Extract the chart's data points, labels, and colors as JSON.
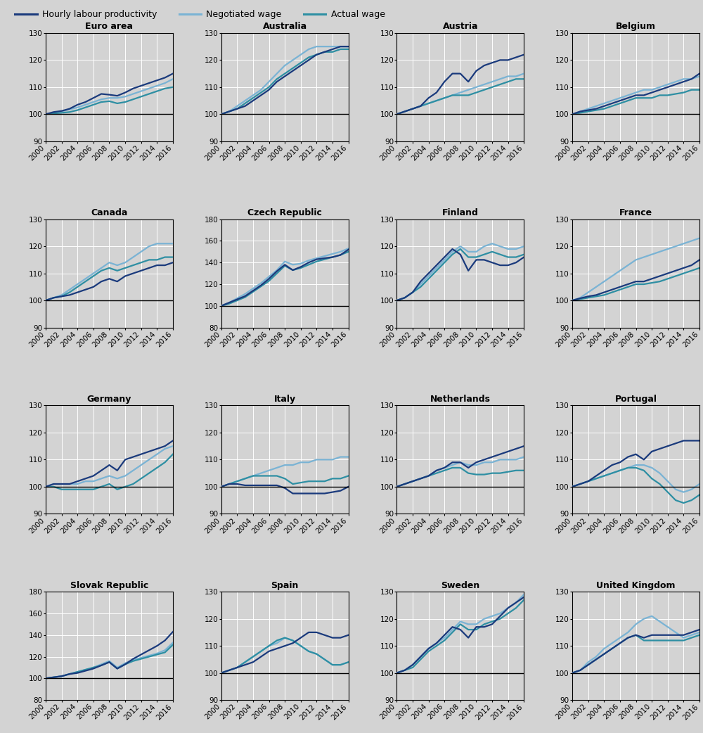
{
  "years": [
    2000,
    2001,
    2002,
    2003,
    2004,
    2005,
    2006,
    2007,
    2008,
    2009,
    2010,
    2011,
    2012,
    2013,
    2014,
    2015,
    2016
  ],
  "panels": [
    {
      "title": "Euro area",
      "ylim": [
        90,
        130
      ],
      "yticks": [
        90,
        100,
        110,
        120,
        130
      ],
      "hourly": [
        100,
        100.8,
        101.2,
        102.0,
        103.5,
        104.5,
        106.0,
        107.5,
        107.2,
        106.8,
        108.0,
        109.5,
        110.5,
        111.5,
        112.5,
        113.5,
        115.0
      ],
      "negotiated": [
        100,
        100.5,
        101.0,
        101.8,
        102.5,
        103.5,
        104.5,
        105.5,
        106.0,
        106.0,
        106.5,
        107.5,
        108.5,
        109.5,
        110.5,
        111.5,
        113.0
      ],
      "actual": [
        100,
        100.3,
        100.5,
        100.8,
        101.5,
        102.5,
        103.5,
        104.5,
        104.8,
        104.0,
        104.5,
        105.5,
        106.5,
        107.5,
        108.5,
        109.5,
        110.0
      ]
    },
    {
      "title": "Australia",
      "ylim": [
        90,
        130
      ],
      "yticks": [
        90,
        100,
        110,
        120,
        130
      ],
      "hourly": [
        100,
        101,
        102,
        103,
        105,
        107,
        109,
        112,
        114,
        116,
        118,
        120,
        122,
        123,
        124,
        125,
        125
      ],
      "negotiated": [
        100,
        101,
        103,
        105,
        107,
        109,
        112,
        115,
        118,
        120,
        122,
        124,
        125,
        125,
        125,
        125,
        125
      ],
      "actual": [
        100,
        101,
        102,
        104,
        106,
        108,
        110,
        113,
        115,
        117,
        119,
        121,
        122,
        123,
        123,
        124,
        124
      ]
    },
    {
      "title": "Austria",
      "ylim": [
        90,
        130
      ],
      "yticks": [
        90,
        100,
        110,
        120,
        130
      ],
      "hourly": [
        100,
        101,
        102,
        103,
        106,
        108,
        112,
        115,
        115,
        112,
        116,
        118,
        119,
        120,
        120,
        121,
        122
      ],
      "negotiated": [
        100,
        101,
        102,
        103,
        104,
        105,
        106,
        107,
        108,
        109,
        110,
        111,
        112,
        113,
        114,
        114,
        115
      ],
      "actual": [
        100,
        101,
        102,
        103,
        104,
        105,
        106,
        107,
        107,
        107,
        108,
        109,
        110,
        111,
        112,
        113,
        113
      ]
    },
    {
      "title": "Belgium",
      "ylim": [
        90,
        130
      ],
      "yticks": [
        90,
        100,
        110,
        120,
        130
      ],
      "hourly": [
        100,
        101,
        101.5,
        102,
        103,
        104,
        105,
        106,
        107,
        107,
        108,
        109,
        110,
        111,
        112,
        113,
        115
      ],
      "negotiated": [
        100,
        101,
        102,
        103,
        104,
        105,
        106,
        107,
        108,
        109,
        109,
        110,
        111,
        112,
        113,
        113,
        114
      ],
      "actual": [
        100,
        100.5,
        101,
        101.5,
        102,
        103,
        104,
        105,
        106,
        106,
        106,
        107,
        107,
        107.5,
        108,
        109,
        109
      ]
    },
    {
      "title": "Canada",
      "ylim": [
        90,
        130
      ],
      "yticks": [
        90,
        100,
        110,
        120,
        130
      ],
      "hourly": [
        100,
        101,
        101.5,
        102,
        103,
        104,
        105,
        107,
        108,
        107,
        109,
        110,
        111,
        112,
        113,
        113,
        114
      ],
      "negotiated": [
        100,
        101,
        102,
        104,
        106,
        108,
        110,
        112,
        114,
        113,
        114,
        116,
        118,
        120,
        121,
        121,
        121
      ],
      "actual": [
        100,
        101,
        101.5,
        103,
        105,
        107,
        109,
        111,
        112,
        111,
        112,
        113,
        114,
        115,
        115,
        116,
        116
      ]
    },
    {
      "title": "Czech Republic",
      "ylim": [
        80,
        180
      ],
      "yticks": [
        80,
        100,
        120,
        140,
        160,
        180
      ],
      "hourly": [
        100,
        103,
        106,
        109,
        114,
        119,
        125,
        132,
        138,
        133,
        136,
        140,
        143,
        144,
        145,
        147,
        152
      ],
      "negotiated": [
        100,
        103,
        107,
        111,
        116,
        121,
        127,
        133,
        141,
        138,
        139,
        142,
        144,
        146,
        148,
        150,
        153
      ],
      "actual": [
        100,
        102,
        105,
        108,
        113,
        118,
        123,
        130,
        137,
        133,
        135,
        138,
        141,
        143,
        145,
        147,
        150
      ]
    },
    {
      "title": "Finland",
      "ylim": [
        90,
        130
      ],
      "yticks": [
        90,
        100,
        110,
        120,
        130
      ],
      "hourly": [
        100,
        101,
        103,
        107,
        110,
        113,
        116,
        119,
        117,
        111,
        115,
        115,
        114,
        113,
        113,
        114,
        116
      ],
      "negotiated": [
        100,
        101,
        103,
        106,
        109,
        112,
        115,
        118,
        120,
        118,
        118,
        120,
        121,
        120,
        119,
        119,
        120
      ],
      "actual": [
        100,
        101,
        103,
        105,
        108,
        111,
        114,
        117,
        119,
        116,
        116,
        117,
        118,
        117,
        116,
        116,
        117
      ]
    },
    {
      "title": "France",
      "ylim": [
        90,
        130
      ],
      "yticks": [
        90,
        100,
        110,
        120,
        130
      ],
      "hourly": [
        100,
        100.8,
        101.5,
        102,
        103,
        104,
        105,
        106,
        107,
        107,
        108,
        109,
        110,
        111,
        112,
        113,
        115
      ],
      "negotiated": [
        100,
        101,
        103,
        105,
        107,
        109,
        111,
        113,
        115,
        116,
        117,
        118,
        119,
        120,
        121,
        122,
        123
      ],
      "actual": [
        100,
        100.5,
        101,
        101.5,
        102,
        103,
        104,
        105,
        106,
        106,
        106.5,
        107,
        108,
        109,
        110,
        111,
        112
      ]
    },
    {
      "title": "Germany",
      "ylim": [
        90,
        130
      ],
      "yticks": [
        90,
        100,
        110,
        120,
        130
      ],
      "hourly": [
        100,
        101,
        101,
        101,
        102,
        103,
        104,
        106,
        108,
        106,
        110,
        111,
        112,
        113,
        114,
        115,
        117
      ],
      "negotiated": [
        100,
        101,
        101,
        101,
        101,
        102,
        102,
        103,
        104,
        103,
        104,
        106,
        108,
        110,
        112,
        114,
        115
      ],
      "actual": [
        100,
        100,
        99,
        99,
        99,
        99,
        99,
        100,
        101,
        99,
        100,
        101,
        103,
        105,
        107,
        109,
        112
      ]
    },
    {
      "title": "Italy",
      "ylim": [
        90,
        130
      ],
      "yticks": [
        90,
        100,
        110,
        120,
        130
      ],
      "hourly": [
        100,
        101,
        101,
        100.5,
        100.5,
        100.5,
        100.5,
        100.5,
        99.5,
        97.5,
        97.5,
        97.5,
        97.5,
        97.5,
        98,
        98.5,
        100
      ],
      "negotiated": [
        100,
        101,
        102,
        103,
        104,
        105,
        106,
        107,
        108,
        108,
        109,
        109,
        110,
        110,
        110,
        111,
        111
      ],
      "actual": [
        100,
        101,
        102,
        103,
        104,
        104,
        104,
        104,
        103,
        101,
        101.5,
        102,
        102,
        102,
        103,
        103,
        104
      ]
    },
    {
      "title": "Netherlands",
      "ylim": [
        90,
        130
      ],
      "yticks": [
        90,
        100,
        110,
        120,
        130
      ],
      "hourly": [
        100,
        101,
        102,
        103,
        104,
        106,
        107,
        109,
        109,
        107,
        109,
        110,
        111,
        112,
        113,
        114,
        115
      ],
      "negotiated": [
        100,
        101,
        102,
        103,
        104,
        106,
        107,
        108,
        109,
        108,
        108,
        109,
        109,
        110,
        110,
        110,
        111
      ],
      "actual": [
        100,
        101,
        102,
        103,
        104,
        105,
        106,
        107,
        107,
        105,
        104.5,
        104.5,
        105,
        105,
        105.5,
        106,
        106
      ]
    },
    {
      "title": "Portugal",
      "ylim": [
        90,
        130
      ],
      "yticks": [
        90,
        100,
        110,
        120,
        130
      ],
      "hourly": [
        100,
        101,
        102,
        104,
        106,
        108,
        109,
        111,
        112,
        110,
        113,
        114,
        115,
        116,
        117,
        117,
        117
      ],
      "negotiated": [
        100,
        101,
        102,
        103,
        104,
        105,
        106,
        107,
        108,
        108,
        107,
        105,
        102,
        99,
        98,
        99,
        101
      ],
      "actual": [
        100,
        101,
        102,
        103,
        104,
        105,
        106,
        107,
        107,
        106,
        103,
        101,
        98,
        95,
        94,
        95,
        97
      ]
    },
    {
      "title": "Slovak Republic",
      "ylim": [
        80,
        180
      ],
      "yticks": [
        80,
        100,
        120,
        140,
        160,
        180
      ],
      "hourly": [
        100,
        101,
        102,
        104,
        105,
        107,
        109,
        112,
        115,
        109,
        113,
        118,
        122,
        126,
        130,
        135,
        143
      ],
      "negotiated": [
        100,
        101,
        102,
        104,
        106,
        108,
        110,
        113,
        116,
        110,
        114,
        117,
        119,
        121,
        123,
        126,
        133
      ],
      "actual": [
        100,
        101,
        102,
        104,
        106,
        108,
        110,
        112,
        115,
        109,
        113,
        116,
        118,
        120,
        122,
        124,
        131
      ]
    },
    {
      "title": "Spain",
      "ylim": [
        90,
        130
      ],
      "yticks": [
        90,
        100,
        110,
        120,
        130
      ],
      "hourly": [
        100,
        101,
        102,
        103,
        104,
        106,
        108,
        109,
        110,
        111,
        113,
        115,
        115,
        114,
        113,
        113,
        114
      ],
      "negotiated": [
        100,
        101,
        102,
        104,
        106,
        108,
        110,
        111,
        113,
        112,
        110,
        108,
        107,
        105,
        103,
        103,
        104
      ],
      "actual": [
        100,
        101,
        102,
        104,
        106,
        108,
        110,
        112,
        113,
        112,
        110,
        108,
        107,
        105,
        103,
        103,
        104
      ]
    },
    {
      "title": "Sweden",
      "ylim": [
        90,
        130
      ],
      "yticks": [
        90,
        100,
        110,
        120,
        130
      ],
      "hourly": [
        100,
        101,
        103,
        106,
        109,
        111,
        114,
        117,
        116,
        113,
        117,
        117,
        118,
        121,
        124,
        126,
        128
      ],
      "negotiated": [
        100,
        101,
        103,
        106,
        109,
        111,
        113,
        116,
        119,
        118,
        118,
        120,
        121,
        122,
        124,
        126,
        129
      ],
      "actual": [
        100,
        101,
        102,
        105,
        108,
        110,
        112,
        115,
        118,
        116,
        116,
        118,
        119,
        120,
        122,
        124,
        127
      ]
    },
    {
      "title": "United Kingdom",
      "ylim": [
        90,
        130
      ],
      "yticks": [
        90,
        100,
        110,
        120,
        130
      ],
      "hourly": [
        100,
        101,
        103,
        105,
        107,
        109,
        111,
        113,
        114,
        113,
        114,
        114,
        114,
        114,
        114,
        115,
        116
      ],
      "negotiated": [
        100,
        101,
        104,
        106,
        109,
        111,
        113,
        115,
        118,
        120,
        121,
        119,
        117,
        115,
        113,
        114,
        115
      ],
      "actual": [
        100,
        101,
        103,
        105,
        107,
        109,
        111,
        113,
        114,
        112,
        112,
        112,
        112,
        112,
        112,
        113,
        114
      ]
    }
  ],
  "color_hourly": "#1a3a7c",
  "color_negotiated": "#7ab3d4",
  "color_actual": "#2e8fa3",
  "bg_color": "#d3d3d3",
  "fig_bg": "#d3d3d3",
  "linewidth": 1.6,
  "legend_fontsize": 9,
  "title_fontsize": 9,
  "tick_fontsize": 7.5
}
